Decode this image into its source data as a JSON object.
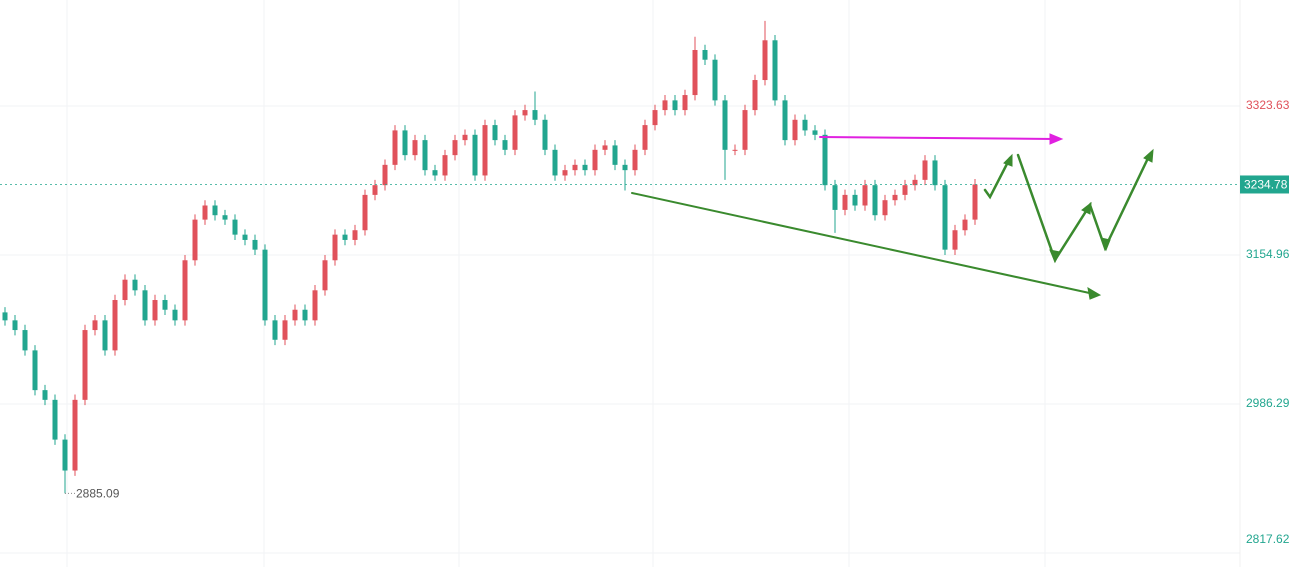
{
  "chart_data": {
    "type": "candlestick",
    "open": [
      3090,
      3081,
      3070,
      3047,
      3002,
      2991,
      2946,
      2911,
      2991,
      3070,
      3081,
      3047,
      3104,
      3127,
      3115,
      3081,
      3104,
      3093,
      3081,
      3149,
      3195,
      3211,
      3200,
      3195,
      3178,
      3172,
      3161,
      3081,
      3059,
      3081,
      3093,
      3081,
      3115,
      3149,
      3178,
      3172,
      3183,
      3223,
      3234,
      3257,
      3296,
      3268,
      3285,
      3251,
      3245,
      3268,
      3285,
      3291,
      3245,
      3302,
      3285,
      3274,
      3313,
      3319,
      3308,
      3274,
      3245,
      3251,
      3257,
      3251,
      3274,
      3279,
      3257,
      3251,
      3274,
      3302,
      3319,
      3330,
      3319,
      3336,
      3387,
      3376,
      3330,
      3274,
      3274,
      3319,
      3353,
      3398,
      3330,
      3285,
      3308,
      3296,
      3291,
      3234,
      3206,
      3223,
      3211,
      3234,
      3200,
      3217,
      3223,
      3234,
      3240,
      3262,
      3234,
      3161,
      3183,
      3195
    ],
    "high": [
      3096,
      3087,
      3076,
      3053,
      3008,
      2997,
      2952,
      2997,
      3076,
      3087,
      3087,
      3110,
      3133,
      3133,
      3121,
      3110,
      3110,
      3099,
      3155,
      3201,
      3217,
      3217,
      3206,
      3201,
      3184,
      3178,
      3167,
      3087,
      3087,
      3099,
      3099,
      3121,
      3155,
      3184,
      3184,
      3189,
      3229,
      3240,
      3263,
      3302,
      3302,
      3291,
      3291,
      3257,
      3274,
      3291,
      3297,
      3297,
      3308,
      3308,
      3291,
      3319,
      3325,
      3340,
      3314,
      3280,
      3257,
      3263,
      3263,
      3280,
      3285,
      3285,
      3263,
      3280,
      3308,
      3325,
      3336,
      3336,
      3342,
      3402,
      3393,
      3382,
      3336,
      3280,
      3325,
      3359,
      3420,
      3404,
      3336,
      3314,
      3314,
      3302,
      3297,
      3240,
      3229,
      3229,
      3240,
      3240,
      3223,
      3229,
      3240,
      3246,
      3268,
      3268,
      3240,
      3189,
      3201,
      3241
    ],
    "low": [
      3075,
      3064,
      3041,
      2996,
      2985,
      2940,
      2885.09,
      2905,
      2985,
      3064,
      3041,
      3041,
      3098,
      3109,
      3075,
      3075,
      3087,
      3075,
      3075,
      3143,
      3189,
      3194,
      3189,
      3172,
      3166,
      3155,
      3075,
      3053,
      3053,
      3075,
      3075,
      3075,
      3109,
      3143,
      3166,
      3166,
      3177,
      3217,
      3228,
      3251,
      3262,
      3262,
      3245,
      3239,
      3239,
      3262,
      3279,
      3239,
      3239,
      3279,
      3268,
      3268,
      3307,
      3302,
      3268,
      3239,
      3239,
      3245,
      3245,
      3245,
      3268,
      3251,
      3228,
      3245,
      3268,
      3296,
      3313,
      3313,
      3313,
      3330,
      3370,
      3324,
      3240,
      3268,
      3268,
      3313,
      3347,
      3324,
      3279,
      3279,
      3290,
      3285,
      3228,
      3180,
      3200,
      3205,
      3205,
      3194,
      3194,
      3211,
      3217,
      3228,
      3234,
      3228,
      3155,
      3155,
      3177,
      3189
    ],
    "close": [
      3081,
      3070,
      3047,
      3002,
      2991,
      2946,
      2911,
      2991,
      3070,
      3081,
      3047,
      3104,
      3127,
      3115,
      3081,
      3104,
      3093,
      3081,
      3149,
      3195,
      3211,
      3200,
      3195,
      3178,
      3172,
      3161,
      3081,
      3059,
      3081,
      3093,
      3081,
      3115,
      3149,
      3178,
      3172,
      3183,
      3223,
      3234,
      3257,
      3296,
      3268,
      3285,
      3251,
      3245,
      3268,
      3285,
      3291,
      3245,
      3302,
      3285,
      3274,
      3313,
      3319,
      3308,
      3274,
      3245,
      3251,
      3257,
      3251,
      3274,
      3279,
      3257,
      3251,
      3274,
      3302,
      3319,
      3330,
      3319,
      3336,
      3387,
      3376,
      3330,
      3274,
      3274,
      3319,
      3353,
      3398,
      3330,
      3285,
      3308,
      3296,
      3291,
      3234,
      3206,
      3223,
      3211,
      3234,
      3200,
      3217,
      3223,
      3234,
      3240,
      3262,
      3234,
      3161,
      3183,
      3195,
      3234.78
    ],
    "up_color": "#e0525b",
    "down_color": "#22a68f",
    "ylim": [
      2801.8,
      3443.6
    ],
    "yticks": [
      2817.62,
      2986.29,
      3154.96,
      3323.63
    ],
    "grid": true
  }
}
